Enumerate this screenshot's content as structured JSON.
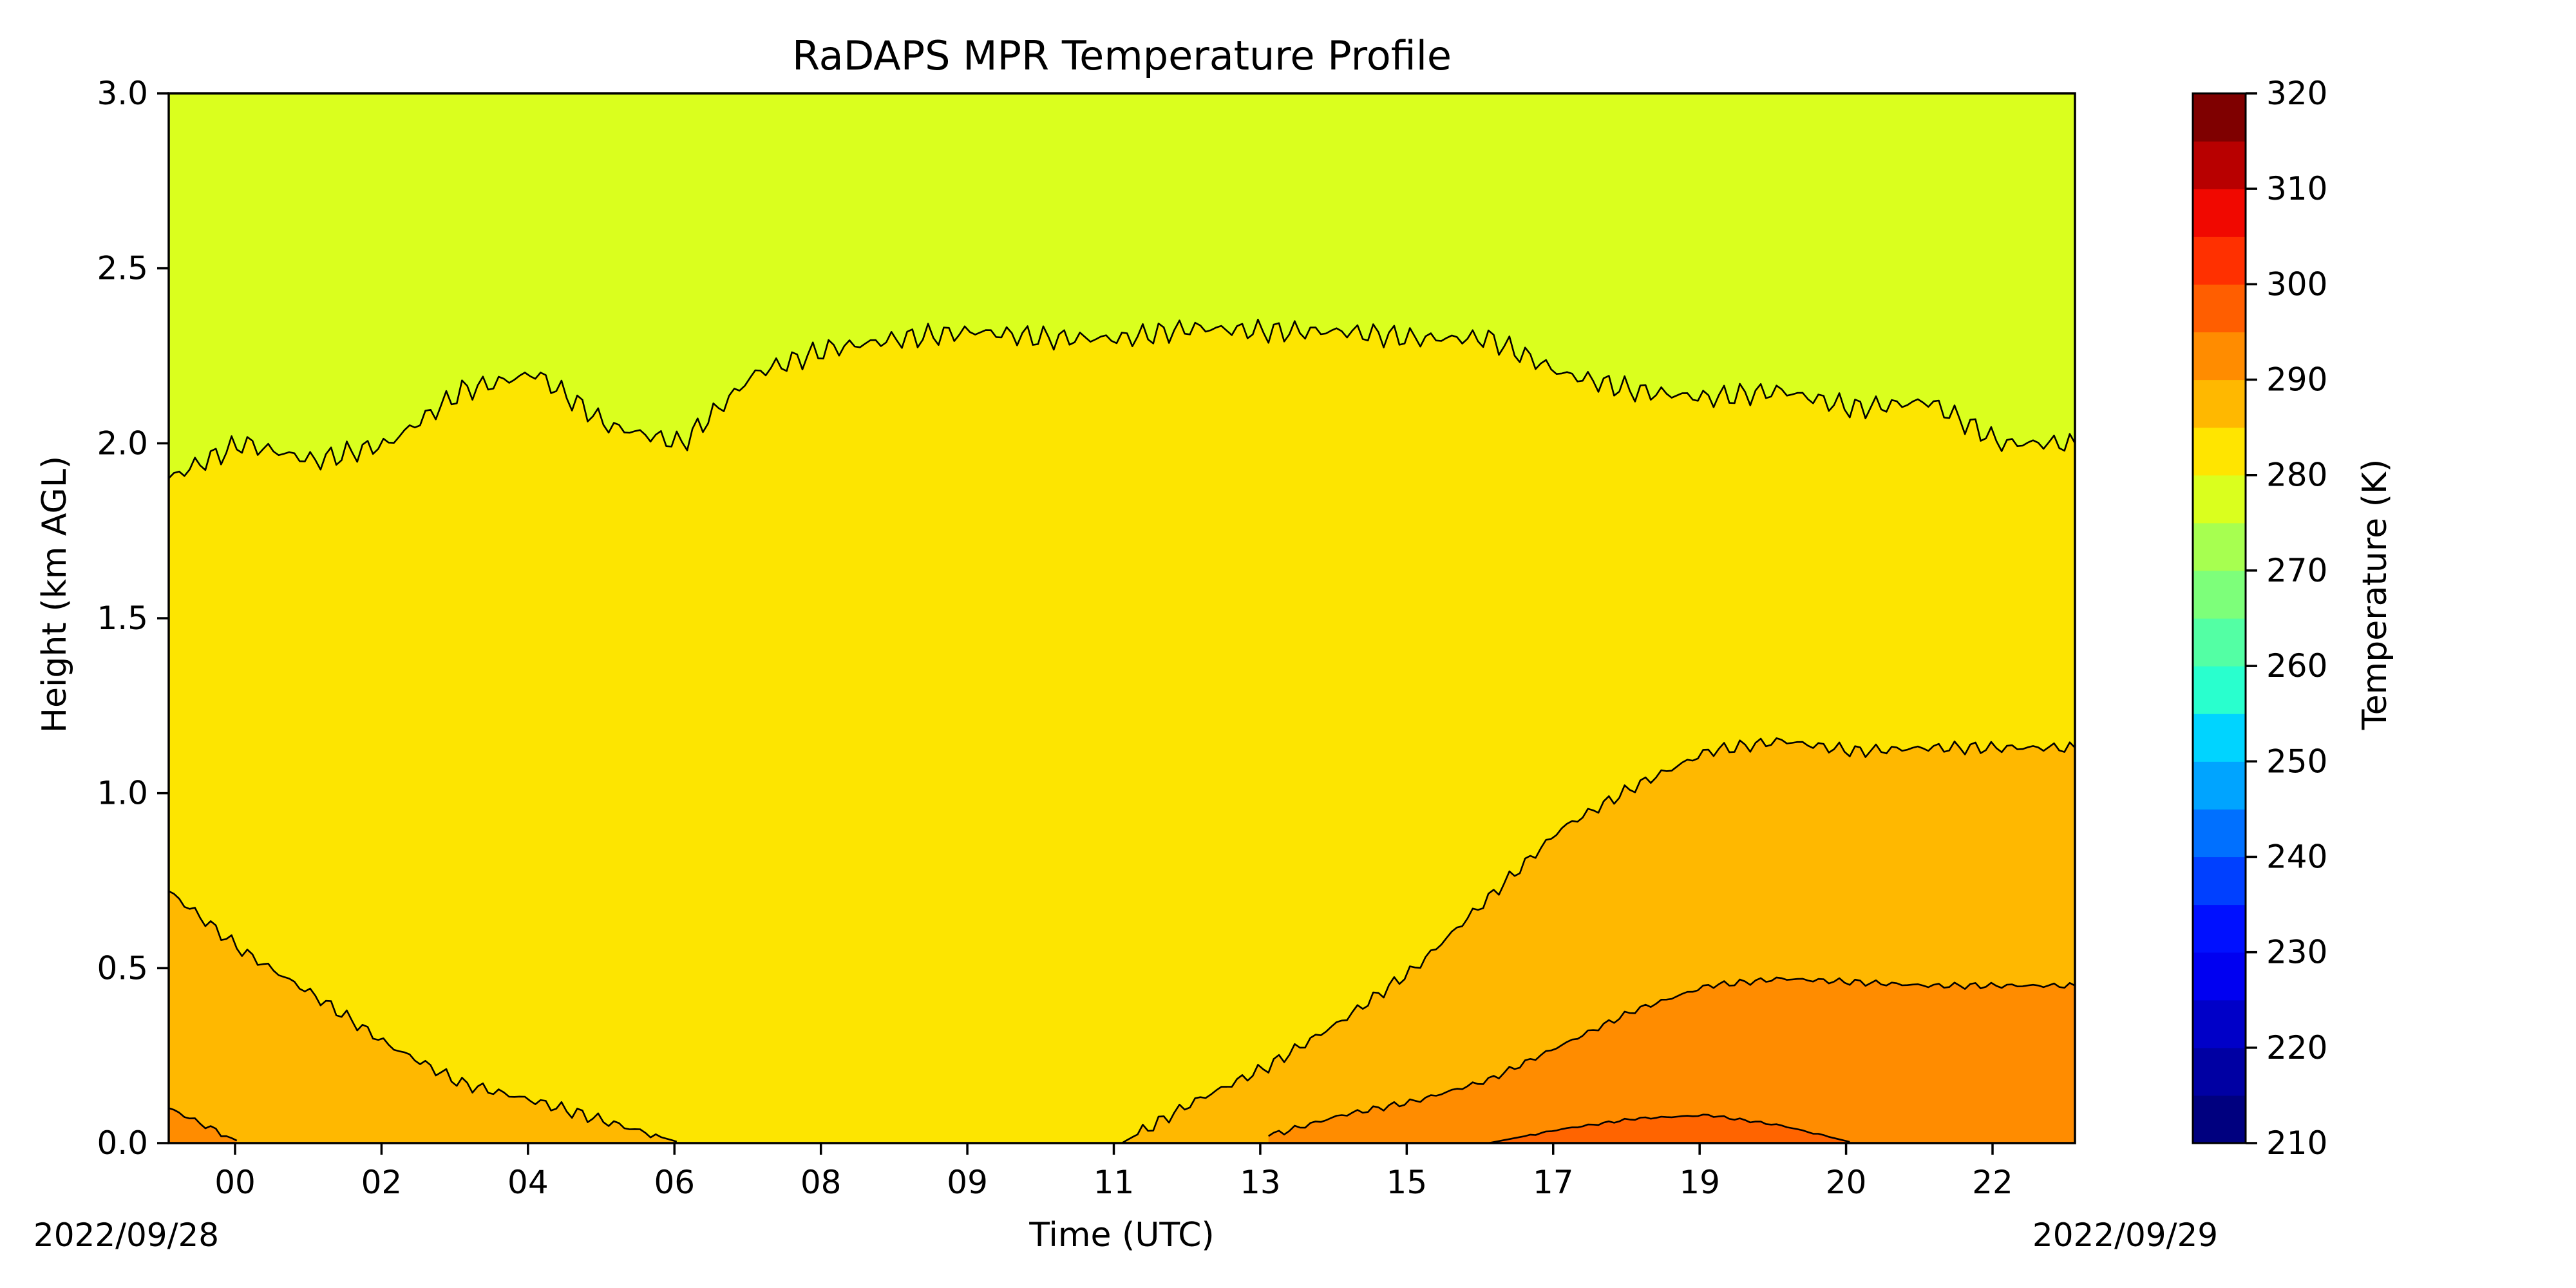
{
  "chart_data": {
    "type": "heatmap",
    "subtype": "filled-contour",
    "title": "RaDAPS MPR Temperature Profile",
    "xlabel": "Time (UTC)",
    "ylabel": "Height (km AGL)",
    "ylim": [
      0.0,
      3.0
    ],
    "yticks": [
      "0.0",
      "0.5",
      "1.0",
      "1.5",
      "2.0",
      "2.5",
      "3.0"
    ],
    "xticks": [
      "00",
      "02",
      "04",
      "06",
      "08",
      "09",
      "11",
      "13",
      "15",
      "17",
      "19",
      "20",
      "22"
    ],
    "date_start": "2022/09/28",
    "date_end": "2022/09/29",
    "colorbar": {
      "label": "Temperature (K)",
      "range": [
        210,
        320
      ],
      "step": 5,
      "tick_labels": [
        "210",
        "220",
        "230",
        "240",
        "250",
        "260",
        "270",
        "280",
        "290",
        "300",
        "310",
        "320"
      ],
      "colors": [
        "#00007f",
        "#0000b6",
        "#0000f1",
        "#0026ff",
        "#0064ff",
        "#00a0ff",
        "#00dcfd",
        "#2dfdca",
        "#60ff97",
        "#93ff64",
        "#c7ff30",
        "#fdef00",
        "#ffb700",
        "#ff8000",
        "#ff4a00",
        "#f00f00",
        "#b60000",
        "#7f0000"
      ],
      "extended_colors": [
        "#00007f",
        "#0000a3",
        "#0000c8",
        "#0000f1",
        "#0010ff",
        "#0040ff",
        "#0070ff",
        "#00a4ff",
        "#00d4ff",
        "#29ffce",
        "#53ffa4",
        "#7dff7a",
        "#a7ff50",
        "#daff1e",
        "#ffe500",
        "#ffb800",
        "#ff8c00",
        "#ff5e00",
        "#ff3000",
        "#f10800",
        "#b80000",
        "#7f0000"
      ]
    },
    "contour_boundaries": {
      "x_hours": [
        0,
        1,
        2,
        3,
        4,
        5,
        6,
        7,
        8,
        9,
        10,
        11,
        12,
        13,
        14,
        15,
        16,
        17,
        18,
        19,
        20,
        21,
        22,
        23,
        24,
        25,
        26
      ],
      "t275_height_km": [
        1.9,
        2.0,
        1.95,
        2.0,
        2.15,
        2.2,
        2.05,
        2.0,
        2.2,
        2.27,
        2.3,
        2.32,
        2.3,
        2.3,
        2.33,
        2.32,
        2.32,
        2.3,
        2.3,
        2.2,
        2.15,
        2.13,
        2.15,
        2.1,
        2.12,
        2.0,
        2.0
      ],
      "t280_height_km": [
        0.72,
        0.55,
        0.42,
        0.28,
        0.17,
        0.12,
        0.06,
        0.0,
        null,
        null,
        null,
        null,
        null,
        0.0,
        0.12,
        0.22,
        0.35,
        0.5,
        0.7,
        0.9,
        1.02,
        1.12,
        1.15,
        1.12,
        1.13,
        1.13,
        1.13
      ],
      "t285_height_km": [
        0.1,
        0.0,
        null,
        null,
        null,
        null,
        null,
        null,
        null,
        null,
        null,
        null,
        null,
        null,
        null,
        0.02,
        0.08,
        0.12,
        0.18,
        0.28,
        0.38,
        0.45,
        0.47,
        0.46,
        0.45,
        0.45,
        0.45
      ],
      "t290_height_km": [
        null,
        null,
        null,
        null,
        null,
        null,
        null,
        null,
        null,
        null,
        null,
        null,
        null,
        null,
        null,
        null,
        null,
        null,
        0.0,
        0.04,
        0.07,
        0.08,
        0.05,
        0.0,
        null,
        null,
        null
      ]
    },
    "fill_colors": {
      "above_275": "#daff1e",
      "275_280": "#fde500",
      "280_285": "#ffb800",
      "285_290": "#ff8c00",
      "290_295": "#ff6400"
    }
  }
}
